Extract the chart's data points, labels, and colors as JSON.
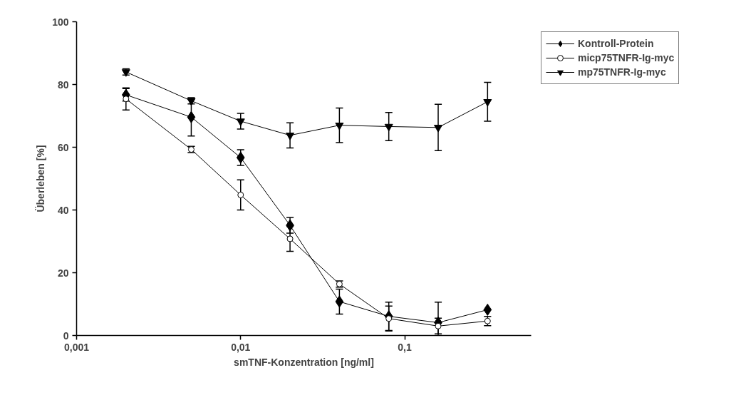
{
  "chart_data": {
    "type": "line",
    "xlabel": "smTNF-Konzentration [ng/ml]",
    "ylabel": "Überleben [%]",
    "log": "x",
    "xlim": [
      0.001,
      0.59
    ],
    "xticks": [
      {
        "value": 0.001,
        "label": "0,001"
      },
      {
        "value": 0.01,
        "label": "0,01"
      },
      {
        "value": 0.1,
        "label": "0,1"
      }
    ],
    "ylim": [
      0,
      100
    ],
    "yticks": [
      0,
      20,
      40,
      60,
      80,
      100
    ],
    "grid": false,
    "legend": "top right",
    "x": [
      0.002,
      0.005,
      0.01,
      0.02,
      0.04,
      0.08,
      0.16,
      0.32
    ],
    "series": [
      {
        "name": "Kontroll-Protein",
        "color": "#000000",
        "marker": "diamond",
        "values": [
          76.7,
          69.6,
          56.7,
          35.1,
          10.8,
          6.1,
          4.1,
          8.2
        ],
        "errors": [
          2,
          6,
          2.5,
          2.5,
          4,
          4.5,
          6.5,
          null
        ]
      },
      {
        "name": "micp75TNFR-Ig-myc",
        "color": "#000000",
        "marker": "circle",
        "values": [
          75.4,
          59.3,
          44.8,
          30.8,
          16.4,
          5.4,
          3.0,
          4.6
        ],
        "errors": [
          3.5,
          1,
          4.8,
          4,
          1,
          4,
          2.5,
          1.5
        ]
      },
      {
        "name": "mp75TNFR-Ig-myc",
        "color": "#000000",
        "marker": "triangle",
        "values": [
          84,
          74.8,
          68.3,
          63.8,
          67.0,
          66.6,
          66.3,
          74.5
        ],
        "errors": [
          1,
          1,
          2.5,
          4,
          5.5,
          4.5,
          7.4,
          6.2
        ]
      }
    ]
  }
}
